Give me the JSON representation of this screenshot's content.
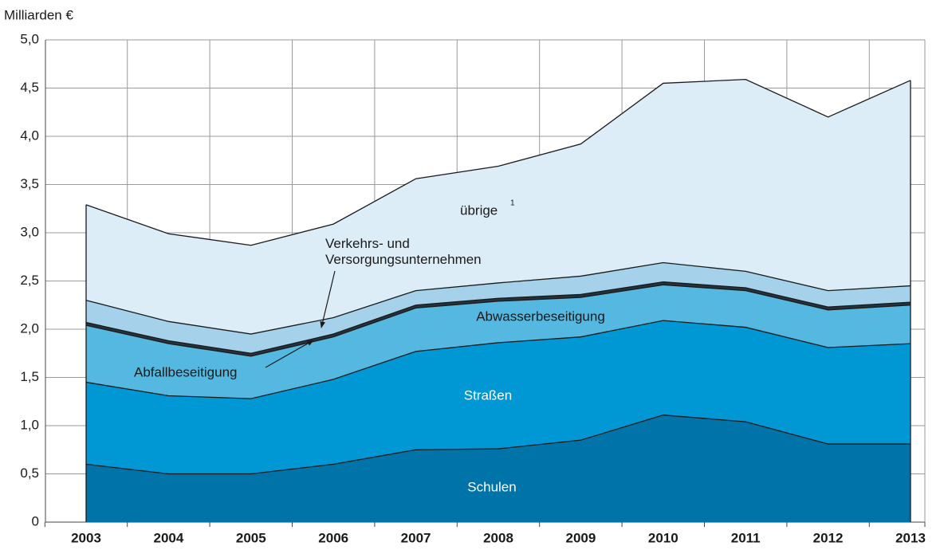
{
  "chart_data": {
    "type": "stacked_area",
    "y_axis_label": "Milliarden €",
    "categories": [
      "2003",
      "2004",
      "2005",
      "2006",
      "2007",
      "2008",
      "2009",
      "2010",
      "2011",
      "2012",
      "2013"
    ],
    "series": [
      {
        "name": "Schulen",
        "color": "#0073a8",
        "label_color": "#ffffff",
        "values": [
          0.6,
          0.5,
          0.5,
          0.6,
          0.75,
          0.76,
          0.85,
          1.11,
          1.04,
          0.81,
          0.81
        ]
      },
      {
        "name": "Straßen",
        "color": "#0098d4",
        "label_color": "#ffffff",
        "values": [
          0.85,
          0.81,
          0.78,
          0.88,
          1.02,
          1.1,
          1.07,
          0.98,
          0.98,
          1.0,
          1.04
        ]
      },
      {
        "name": "Abwasserbeseitigung",
        "color": "#55b8e0",
        "label_color": "#1a1a1a",
        "values": [
          0.59,
          0.54,
          0.44,
          0.44,
          0.45,
          0.43,
          0.41,
          0.37,
          0.38,
          0.39,
          0.4
        ]
      },
      {
        "name": "Abfallbeseitigung",
        "color": "#26333f",
        "label_color": "#1a1a1a",
        "values": [
          0.03,
          0.03,
          0.03,
          0.03,
          0.03,
          0.03,
          0.03,
          0.03,
          0.03,
          0.03,
          0.03
        ]
      },
      {
        "name": "Verkehrs- und Versorgungsunternehmen",
        "color": "#a6d1ea",
        "label_color": "#1a1a1a",
        "values": [
          0.23,
          0.2,
          0.2,
          0.17,
          0.15,
          0.16,
          0.19,
          0.2,
          0.17,
          0.17,
          0.17
        ]
      },
      {
        "name": "übrige",
        "footnote": "1",
        "color": "#dcedf7",
        "label_color": "#1a1a1a",
        "values": [
          0.99,
          0.91,
          0.92,
          0.97,
          1.16,
          1.21,
          1.37,
          1.86,
          1.99,
          1.8,
          2.13
        ]
      }
    ],
    "ylim": [
      0,
      5
    ],
    "yticks": [
      0,
      {
        "value": 0.5,
        "label": "0,5"
      },
      {
        "value": 1,
        "label": "1,0"
      },
      {
        "value": 1.5,
        "label": "1,5"
      },
      {
        "value": 2,
        "label": "2,0"
      },
      {
        "value": 2.5,
        "label": "2,5"
      },
      {
        "value": 3,
        "label": "3,0"
      },
      {
        "value": 3.5,
        "label": "3,5"
      },
      {
        "value": 4,
        "label": "4,0"
      },
      {
        "value": 4.5,
        "label": "4,5"
      },
      {
        "value": 5,
        "label": "5,0"
      }
    ],
    "grid": true
  }
}
